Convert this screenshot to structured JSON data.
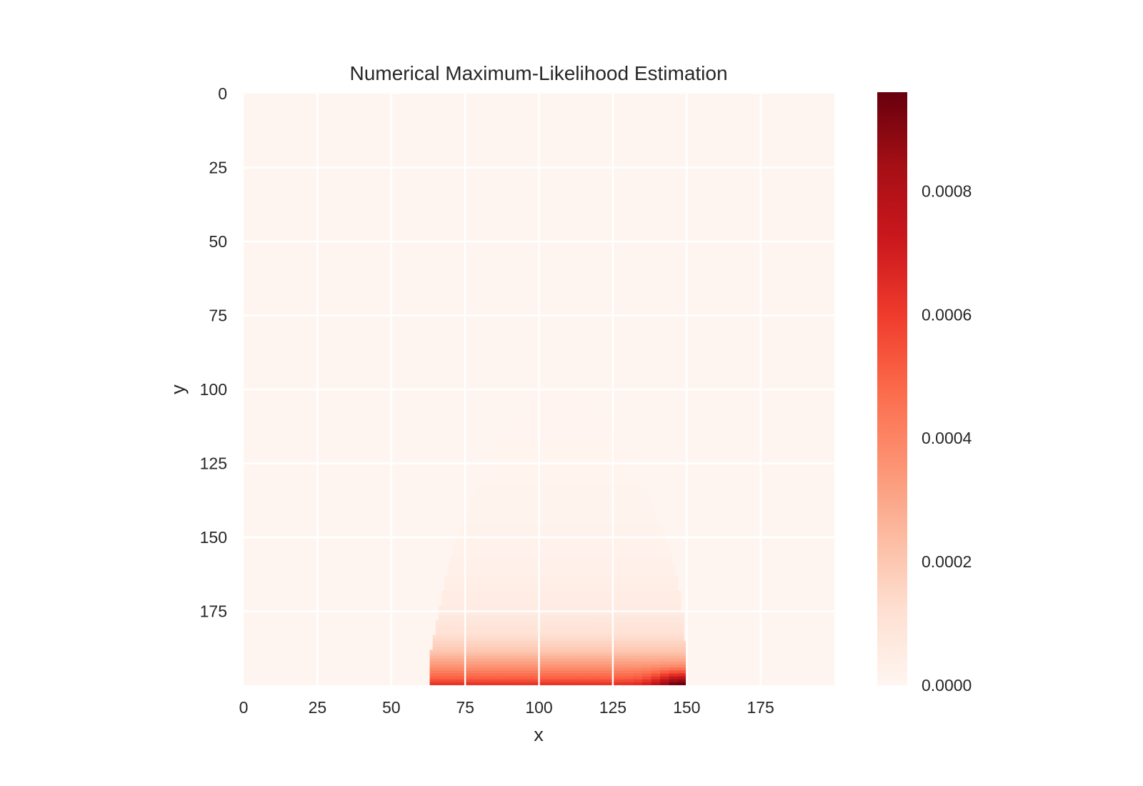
{
  "chart_data": {
    "type": "heatmap",
    "title": "Numerical Maximum-Likelihood Estimation",
    "xlabel": "x",
    "ylabel": "y",
    "grid_size": [
      200,
      200
    ],
    "xlim": [
      0,
      200
    ],
    "ylim": [
      200,
      0
    ],
    "y_axis_inverted": true,
    "grid": true,
    "x_ticks": [
      0,
      25,
      50,
      75,
      100,
      125,
      150,
      175
    ],
    "x_tick_labels": [
      "0",
      "25",
      "50",
      "75",
      "100",
      "125",
      "150",
      "175"
    ],
    "y_ticks": [
      0,
      25,
      50,
      75,
      100,
      125,
      150,
      175
    ],
    "y_tick_labels": [
      "0",
      "25",
      "50",
      "75",
      "100",
      "125",
      "150",
      "175"
    ],
    "colormap": "Reds",
    "colormap_stops": [
      "#fff5f0",
      "#fee0d2",
      "#fcbba1",
      "#fc9272",
      "#fb6a4a",
      "#ef3b2c",
      "#cb181d",
      "#a50f15",
      "#67000d"
    ],
    "colorbar": {
      "range": [
        0,
        0.00096
      ],
      "ticks": [
        0,
        0.0002,
        0.0004,
        0.0006,
        0.0008
      ],
      "tick_labels": [
        "0.0000",
        "0.0002",
        "0.0004",
        "0.0006",
        "0.0008"
      ]
    },
    "nonzero_region": {
      "description_rows": "row index y, columns from x_min to x_max carry nonzero likelihood",
      "boundary": [
        {
          "y": 100,
          "x_min": 100,
          "x_max": 114
        },
        {
          "y": 110,
          "x_min": 91,
          "x_max": 122
        },
        {
          "y": 120,
          "x_min": 85,
          "x_max": 128
        },
        {
          "y": 130,
          "x_min": 80,
          "x_max": 134
        },
        {
          "y": 140,
          "x_min": 76,
          "x_max": 139
        },
        {
          "y": 150,
          "x_min": 72,
          "x_max": 143
        },
        {
          "y": 160,
          "x_min": 69,
          "x_max": 146
        },
        {
          "y": 170,
          "x_min": 67,
          "x_max": 148
        },
        {
          "y": 180,
          "x_min": 65,
          "x_max": 149
        },
        {
          "y": 190,
          "x_min": 63,
          "x_max": 150
        },
        {
          "y": 199,
          "x_min": 63,
          "x_max": 150
        }
      ],
      "value_profile": [
        {
          "y": 110,
          "value": 5e-06
        },
        {
          "y": 140,
          "value": 1e-05
        },
        {
          "y": 160,
          "value": 2.5e-05
        },
        {
          "y": 175,
          "value": 6e-05
        },
        {
          "y": 182,
          "value": 0.00011
        },
        {
          "y": 188,
          "value": 0.0002
        },
        {
          "y": 193,
          "value": 0.00035
        },
        {
          "y": 197,
          "value": 0.0005
        },
        {
          "y": 199,
          "value": 0.00062
        }
      ],
      "peak": {
        "x": 148,
        "y": 199,
        "value": 0.00095
      }
    }
  }
}
